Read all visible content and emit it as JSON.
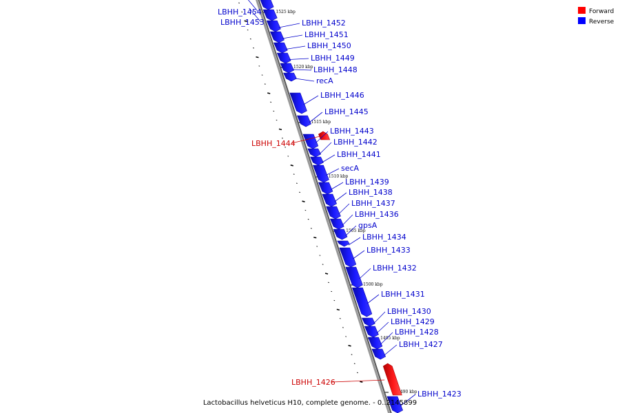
{
  "caption": "Lactobacillus helveticus H10, complete genome. - 0..2145899",
  "legend": {
    "forward": {
      "label": "Forward",
      "color": "#ff0000"
    },
    "reverse": {
      "label": "Reverse",
      "color": "#0000ff"
    }
  },
  "colors": {
    "forward_label": "#cc0000",
    "reverse_label": "#0000cc",
    "backbone": "#999999",
    "backbone_shadow": "#555555"
  },
  "scale_ticks": [
    {
      "position_kbp": 1525,
      "label": "1525 kbp"
    },
    {
      "position_kbp": 1520,
      "label": "1520 kbp"
    },
    {
      "position_kbp": 1515,
      "label": "1515 kbp"
    },
    {
      "position_kbp": 1510,
      "label": "1510 kbp"
    },
    {
      "position_kbp": 1505,
      "label": "1505 kbp"
    },
    {
      "position_kbp": 1500,
      "label": "1500 kbp"
    },
    {
      "position_kbp": 1495,
      "label": "1495 kbp"
    },
    {
      "position_kbp": 1490,
      "label": "1490 kbp"
    }
  ],
  "genes": [
    {
      "name": "LBHH_1454",
      "strand": "reverse"
    },
    {
      "name": "LBHH_1453",
      "strand": "reverse"
    },
    {
      "name": "LBHH_1452",
      "strand": "reverse"
    },
    {
      "name": "LBHH_1451",
      "strand": "reverse"
    },
    {
      "name": "LBHH_1450",
      "strand": "reverse"
    },
    {
      "name": "LBHH_1449",
      "strand": "reverse"
    },
    {
      "name": "LBHH_1448",
      "strand": "reverse"
    },
    {
      "name": "recA",
      "strand": "reverse"
    },
    {
      "name": "LBHH_1446",
      "strand": "reverse"
    },
    {
      "name": "LBHH_1445",
      "strand": "reverse"
    },
    {
      "name": "LBHH_1444",
      "strand": "forward"
    },
    {
      "name": "LBHH_1443",
      "strand": "reverse"
    },
    {
      "name": "LBHH_1442",
      "strand": "reverse"
    },
    {
      "name": "LBHH_1441",
      "strand": "reverse"
    },
    {
      "name": "secA",
      "strand": "reverse"
    },
    {
      "name": "LBHH_1439",
      "strand": "reverse"
    },
    {
      "name": "LBHH_1438",
      "strand": "reverse"
    },
    {
      "name": "LBHH_1437",
      "strand": "reverse"
    },
    {
      "name": "LBHH_1436",
      "strand": "reverse"
    },
    {
      "name": "gpsA",
      "strand": "reverse"
    },
    {
      "name": "LBHH_1434",
      "strand": "reverse"
    },
    {
      "name": "LBHH_1433",
      "strand": "reverse"
    },
    {
      "name": "LBHH_1432",
      "strand": "reverse"
    },
    {
      "name": "LBHH_1431",
      "strand": "reverse"
    },
    {
      "name": "LBHH_1430",
      "strand": "reverse"
    },
    {
      "name": "LBHH_1429",
      "strand": "reverse"
    },
    {
      "name": "LBHH_1428",
      "strand": "reverse"
    },
    {
      "name": "LBHH_1427",
      "strand": "reverse"
    },
    {
      "name": "LBHH_1426",
      "strand": "forward"
    },
    {
      "name": "LBHH_1423",
      "strand": "reverse"
    }
  ]
}
